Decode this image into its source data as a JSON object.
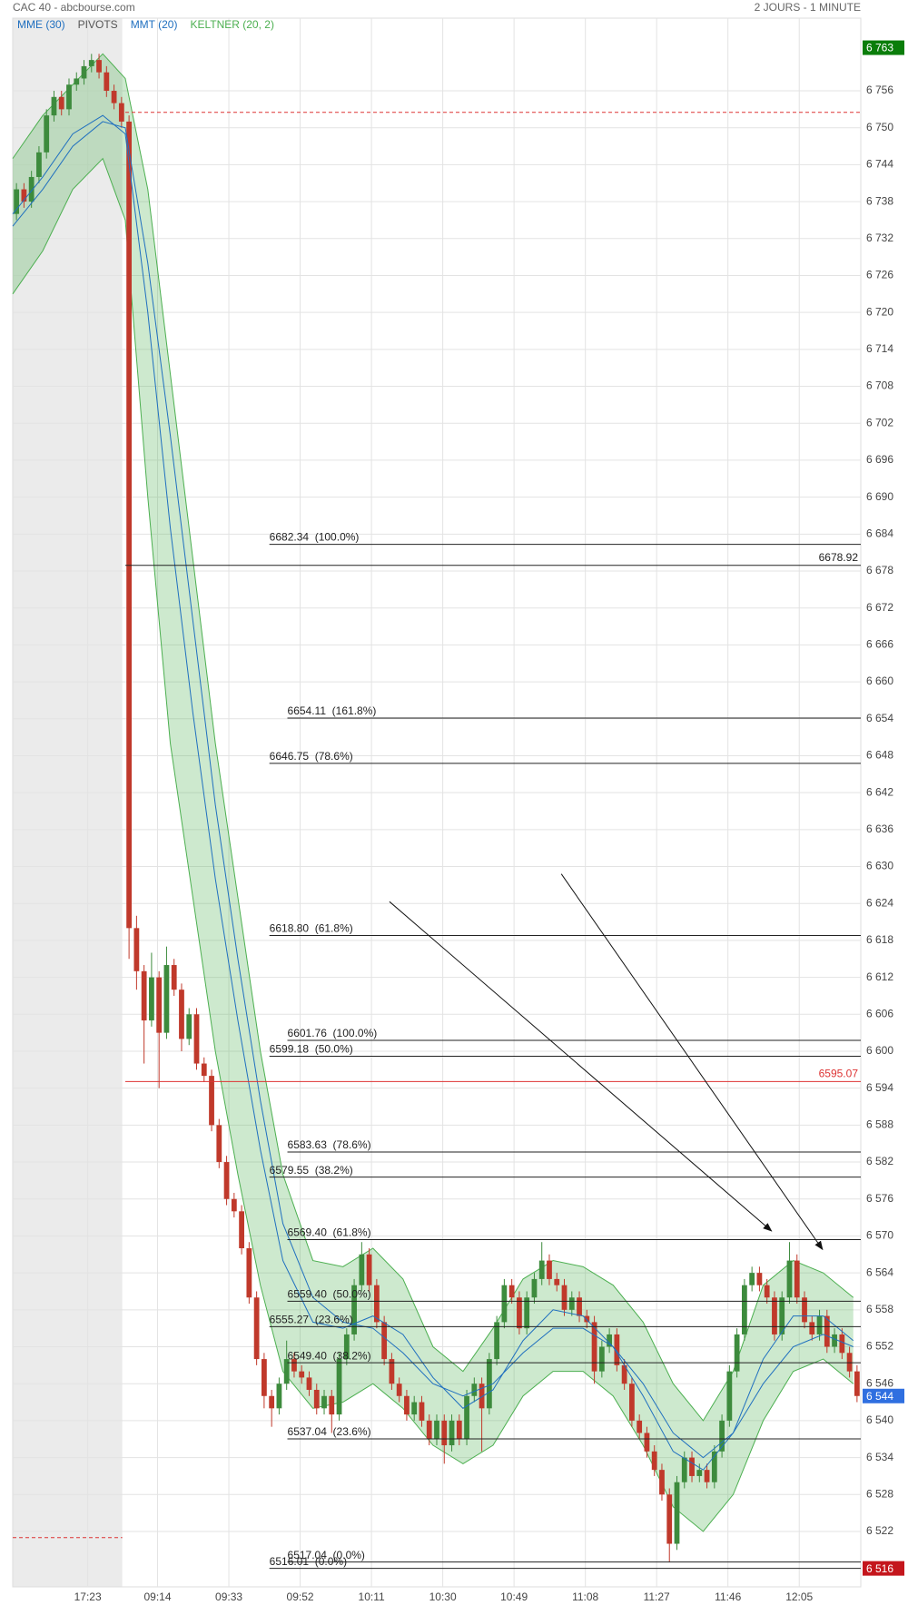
{
  "chart_data": {
    "type": "candlestick",
    "title": "CAC 40 - abcbourse.com",
    "subtitle": "2 JOURS - 1 MINUTE",
    "ylim": [
      6513,
      6767.8
    ],
    "xlim": [
      0,
      113
    ],
    "grid": true,
    "up_color": "#3d8b3d",
    "down_color": "#c0392b",
    "shaded_x": [
      0,
      14.6
    ],
    "yticks": [
      {
        "value": 6756,
        "label": "6 756"
      },
      {
        "value": 6750,
        "label": "6 750"
      },
      {
        "value": 6744,
        "label": "6 744"
      },
      {
        "value": 6738,
        "label": "6 738"
      },
      {
        "value": 6732,
        "label": "6 732"
      },
      {
        "value": 6726,
        "label": "6 726"
      },
      {
        "value": 6720,
        "label": "6 720"
      },
      {
        "value": 6714,
        "label": "6 714"
      },
      {
        "value": 6708,
        "label": "6 708"
      },
      {
        "value": 6702,
        "label": "6 702"
      },
      {
        "value": 6696,
        "label": "6 696"
      },
      {
        "value": 6690,
        "label": "6 690"
      },
      {
        "value": 6684,
        "label": "6 684"
      },
      {
        "value": 6678,
        "label": "6 678"
      },
      {
        "value": 6672,
        "label": "6 672"
      },
      {
        "value": 6666,
        "label": "6 666"
      },
      {
        "value": 6660,
        "label": "6 660"
      },
      {
        "value": 6654,
        "label": "6 654"
      },
      {
        "value": 6648,
        "label": "6 648"
      },
      {
        "value": 6642,
        "label": "6 642"
      },
      {
        "value": 6636,
        "label": "6 636"
      },
      {
        "value": 6630,
        "label": "6 630"
      },
      {
        "value": 6624,
        "label": "6 624"
      },
      {
        "value": 6618,
        "label": "6 618"
      },
      {
        "value": 6612,
        "label": "6 612"
      },
      {
        "value": 6606,
        "label": "6 606"
      },
      {
        "value": 6600,
        "label": "6 600"
      },
      {
        "value": 6594,
        "label": "6 594"
      },
      {
        "value": 6588,
        "label": "6 588"
      },
      {
        "value": 6582,
        "label": "6 582"
      },
      {
        "value": 6576,
        "label": "6 576"
      },
      {
        "value": 6570,
        "label": "6 570"
      },
      {
        "value": 6564,
        "label": "6 564"
      },
      {
        "value": 6558,
        "label": "6 558"
      },
      {
        "value": 6552,
        "label": "6 552"
      },
      {
        "value": 6546,
        "label": "6 546"
      },
      {
        "value": 6540,
        "label": "6 540"
      },
      {
        "value": 6534,
        "label": "6 534"
      },
      {
        "value": 6528,
        "label": "6 528"
      },
      {
        "value": 6522,
        "label": "6 522"
      }
    ],
    "xticks": [
      {
        "value": 10,
        "label": "17:23"
      },
      {
        "value": 19.3,
        "label": "09:14"
      },
      {
        "value": 28.8,
        "label": "09:33"
      },
      {
        "value": 38.3,
        "label": "09:52"
      },
      {
        "value": 47.8,
        "label": "10:11"
      },
      {
        "value": 57.3,
        "label": "10:30"
      },
      {
        "value": 66.8,
        "label": "10:49"
      },
      {
        "value": 76.3,
        "label": "11:08"
      },
      {
        "value": 85.8,
        "label": "11:27"
      },
      {
        "value": 95.3,
        "label": "11:46"
      },
      {
        "value": 104.8,
        "label": "12:05"
      }
    ],
    "candles": {
      "open": [
        6736,
        6740,
        6738,
        6742,
        6746,
        6752,
        6755,
        6753,
        6757,
        6758,
        6760,
        6761,
        6759,
        6756,
        6754,
        6751,
        6620,
        6613,
        6605,
        6612,
        6603,
        6614,
        6610,
        6602,
        6606,
        6598,
        6596,
        6588,
        6582,
        6576,
        6574,
        6568,
        6560,
        6550,
        6544,
        6542,
        6546,
        6550,
        6548,
        6547,
        6545,
        6542,
        6544,
        6541,
        6550,
        6554,
        6562,
        6567,
        6562,
        6556,
        6550,
        6546,
        6544,
        6541,
        6543,
        6540,
        6537,
        6540,
        6536,
        6540,
        6537,
        6544,
        6546,
        6542,
        6550,
        6556,
        6562,
        6560,
        6555,
        6560,
        6563,
        6566,
        6563,
        6562,
        6558,
        6560,
        6557,
        6556,
        6548,
        6552,
        6554,
        6549,
        6546,
        6540,
        6538,
        6535,
        6532,
        6528,
        6520,
        6530,
        6534,
        6531,
        6532,
        6530,
        6535,
        6540,
        6548,
        6554,
        6562,
        6564,
        6562,
        6560,
        6554,
        6560,
        6566,
        6560,
        6556,
        6554,
        6557,
        6552,
        6554,
        6551,
        6548
      ],
      "high": [
        6741,
        6741,
        6743,
        6747,
        6753,
        6756,
        6756,
        6758,
        6759,
        6761,
        6762,
        6762,
        6760,
        6757,
        6755,
        6752,
        6622,
        6614,
        6616,
        6613,
        6617,
        6615,
        6611,
        6607,
        6607,
        6599,
        6597,
        6589,
        6583,
        6577,
        6575,
        6569,
        6561,
        6551,
        6545,
        6547,
        6553,
        6551,
        6549,
        6548,
        6546,
        6545,
        6545,
        6551,
        6555,
        6563,
        6569,
        6568,
        6563,
        6557,
        6551,
        6547,
        6545,
        6544,
        6544,
        6541,
        6541,
        6541,
        6541,
        6541,
        6545,
        6547,
        6547,
        6551,
        6557,
        6563,
        6563,
        6561,
        6561,
        6564,
        6569,
        6567,
        6564,
        6563,
        6561,
        6561,
        6558,
        6557,
        6553,
        6555,
        6555,
        6550,
        6547,
        6541,
        6539,
        6536,
        6533,
        6529,
        6531,
        6535,
        6535,
        6533,
        6533,
        6536,
        6541,
        6549,
        6555,
        6563,
        6565,
        6565,
        6563,
        6561,
        6561,
        6569,
        6567,
        6561,
        6557,
        6558,
        6558,
        6555,
        6555,
        6552,
        6549
      ],
      "low": [
        6735,
        6737,
        6737,
        6741,
        6745,
        6751,
        6752,
        6752,
        6756,
        6757,
        6759,
        6758,
        6755,
        6753,
        6750,
        6615,
        6610,
        6598,
        6604,
        6594,
        6602,
        6609,
        6600,
        6601,
        6597,
        6595,
        6587,
        6581,
        6575,
        6573,
        6567,
        6559,
        6549,
        6542,
        6539,
        6541,
        6545,
        6547,
        6546,
        6544,
        6541,
        6541,
        6538,
        6540,
        6549,
        6553,
        6561,
        6561,
        6555,
        6549,
        6545,
        6543,
        6540,
        6540,
        6539,
        6536,
        6536,
        6533,
        6535,
        6536,
        6536,
        6543,
        6535,
        6541,
        6549,
        6555,
        6559,
        6554,
        6554,
        6559,
        6562,
        6562,
        6561,
        6557,
        6557,
        6556,
        6555,
        6546,
        6547,
        6551,
        6548,
        6545,
        6539,
        6537,
        6534,
        6531,
        6527,
        6517,
        6519,
        6529,
        6530,
        6530,
        6529,
        6529,
        6534,
        6539,
        6547,
        6553,
        6561,
        6561,
        6559,
        6553,
        6553,
        6559,
        6559,
        6555,
        6553,
        6553,
        6551,
        6551,
        6550,
        6547,
        6543
      ],
      "close": [
        6740,
        6738,
        6742,
        6746,
        6752,
        6755,
        6753,
        6757,
        6758,
        6760,
        6761,
        6759,
        6756,
        6754,
        6751,
        6620,
        6613,
        6605,
        6612,
        6603,
        6614,
        6610,
        6602,
        6606,
        6598,
        6596,
        6588,
        6582,
        6576,
        6574,
        6568,
        6560,
        6550,
        6544,
        6542,
        6546,
        6550,
        6548,
        6547,
        6545,
        6542,
        6544,
        6541,
        6550,
        6554,
        6562,
        6567,
        6562,
        6556,
        6550,
        6546,
        6544,
        6541,
        6543,
        6540,
        6537,
        6540,
        6536,
        6540,
        6537,
        6544,
        6546,
        6542,
        6550,
        6556,
        6562,
        6560,
        6555,
        6560,
        6563,
        6566,
        6563,
        6562,
        6558,
        6560,
        6557,
        6556,
        6548,
        6552,
        6554,
        6549,
        6546,
        6540,
        6538,
        6535,
        6532,
        6528,
        6520,
        6530,
        6534,
        6531,
        6532,
        6530,
        6535,
        6540,
        6548,
        6554,
        6562,
        6564,
        6562,
        6560,
        6554,
        6560,
        6566,
        6560,
        6556,
        6554,
        6557,
        6552,
        6554,
        6551,
        6548,
        6544
      ]
    },
    "series": [
      {
        "name": "MME (30)",
        "color": "#1f6fbf",
        "x": [
          0,
          4,
          8,
          12,
          15,
          18,
          21,
          24,
          27,
          30,
          33,
          36,
          40,
          44,
          48,
          52,
          56,
          60,
          64,
          68,
          72,
          76,
          80,
          84,
          88,
          92,
          96,
          100,
          104,
          108,
          112
        ],
        "values": [
          6734,
          6740,
          6747,
          6751,
          6750,
          6728,
          6700,
          6670,
          6640,
          6615,
          6592,
          6572,
          6560,
          6556,
          6555,
          6551,
          6546,
          6544,
          6546,
          6551,
          6555,
          6555,
          6552,
          6546,
          6538,
          6534,
          6538,
          6546,
          6552,
          6554,
          6552
        ]
      },
      {
        "name": "MMT (20)",
        "color": "#1f6fbf",
        "x": [
          0,
          4,
          8,
          12,
          15,
          18,
          21,
          24,
          27,
          30,
          33,
          36,
          40,
          44,
          48,
          52,
          56,
          60,
          64,
          68,
          72,
          76,
          80,
          84,
          88,
          92,
          96,
          100,
          104,
          108,
          112
        ],
        "values": [
          6736,
          6742,
          6749,
          6752,
          6749,
          6720,
          6685,
          6655,
          6628,
          6605,
          6584,
          6566,
          6556,
          6555,
          6557,
          6554,
          6547,
          6542,
          6545,
          6553,
          6558,
          6557,
          6552,
          6544,
          6535,
          6532,
          6538,
          6550,
          6557,
          6557,
          6553
        ]
      },
      {
        "name": "KELTNER (20, 2)",
        "color": "#4caf50",
        "x": [
          0,
          4,
          8,
          12,
          15,
          18,
          21,
          24,
          27,
          30,
          33,
          36,
          40,
          44,
          48,
          52,
          56,
          60,
          64,
          68,
          72,
          76,
          80,
          84,
          88,
          92,
          96,
          100,
          104,
          108,
          112
        ],
        "upper": [
          6745,
          6752,
          6757,
          6762,
          6758,
          6740,
          6710,
          6680,
          6650,
          6625,
          6600,
          6580,
          6566,
          6565,
          6568,
          6563,
          6552,
          6548,
          6555,
          6563,
          6566,
          6565,
          6562,
          6556,
          6546,
          6540,
          6548,
          6562,
          6566,
          6564,
          6560
        ],
        "lower": [
          6723,
          6730,
          6740,
          6745,
          6735,
          6690,
          6650,
          6625,
          6600,
          6580,
          6562,
          6548,
          6542,
          6543,
          6546,
          6542,
          6536,
          6533,
          6536,
          6544,
          6548,
          6548,
          6544,
          6536,
          6526,
          6522,
          6528,
          6540,
          6548,
          6550,
          6546
        ]
      }
    ],
    "pivots": {
      "name": "PIVOTS",
      "color": "#d33",
      "lines": [
        {
          "value": 6752.5,
          "x": [
            15,
            113
          ]
        },
        {
          "value": 6521,
          "x": [
            0,
            14.6
          ]
        }
      ]
    },
    "levels": [
      {
        "value": 6682.34,
        "label": "6682.34  (100.0%)",
        "start": 34.2
      },
      {
        "value": 6654.11,
        "label": "6654.11  (161.8%)",
        "start": 36.6
      },
      {
        "value": 6646.75,
        "label": "6646.75  (78.6%)",
        "start": 34.2
      },
      {
        "value": 6618.8,
        "label": "6618.80  (61.8%)",
        "start": 34.2
      },
      {
        "value": 6601.76,
        "label": "6601.76  (100.0%)",
        "start": 36.6
      },
      {
        "value": 6599.18,
        "label": "6599.18  (50.0%)",
        "start": 34.2
      },
      {
        "value": 6583.63,
        "label": "6583.63  (78.6%)",
        "start": 36.6
      },
      {
        "value": 6579.55,
        "label": "6579.55  (38.2%)",
        "start": 34.2
      },
      {
        "value": 6569.4,
        "label": "6569.40  (61.8%)",
        "start": 36.6
      },
      {
        "value": 6559.4,
        "label": "6559.40  (50.0%)",
        "start": 36.6
      },
      {
        "value": 6555.27,
        "label": "6555.27  (23.6%)",
        "start": 34.2
      },
      {
        "value": 6549.4,
        "label": "6549.40  (38.2%)",
        "start": 36.6
      },
      {
        "value": 6537.04,
        "label": "6537.04  (23.6%)",
        "start": 36.6
      },
      {
        "value": 6517.04,
        "label": "6517.04  (0.0%)",
        "start": 36.6
      },
      {
        "value": 6516.01,
        "label": "6516.01  (0.0%)",
        "start": 34.2
      }
    ],
    "lines": [
      {
        "value": 6678.92,
        "label": "6678.92",
        "start": 15,
        "color": "#222"
      },
      {
        "value": 6595.07,
        "label": "6595.07",
        "start": 15,
        "color": "#d33"
      }
    ],
    "arrows": [
      {
        "x": [
          50.2,
          101.1
        ],
        "y": [
          6624.3,
          6570.8
        ]
      },
      {
        "x": [
          73.1,
          107.9
        ],
        "y": [
          6628.8,
          6567.8
        ]
      }
    ],
    "price_tags": [
      {
        "value": 6763,
        "label": "6 763",
        "color": "#0a7d0a"
      },
      {
        "value": 6544,
        "label": "6 544",
        "color": "#2f6fe0"
      },
      {
        "value": 6516,
        "label": "6 516",
        "color": "#c4161c"
      }
    ]
  }
}
